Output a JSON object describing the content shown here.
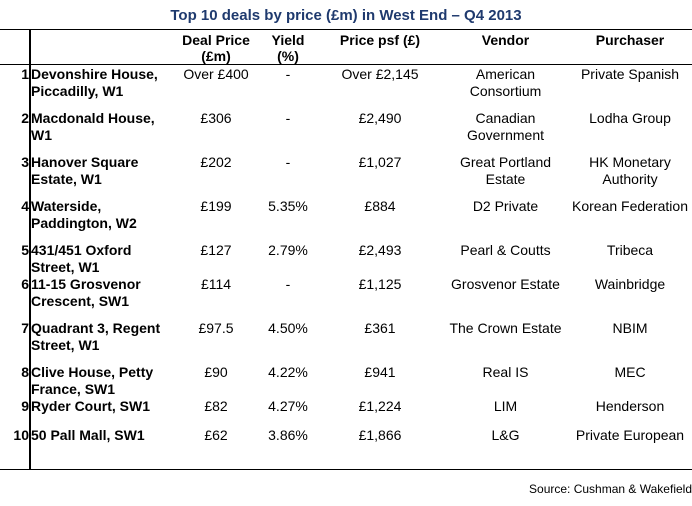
{
  "title": "Top 10 deals by price (£m) in West End – Q4 2013",
  "headers": {
    "deal_price": "Deal Price (£m)",
    "yield": "Yield (%)",
    "price_psf": "Price psf (£)",
    "vendor": "Vendor",
    "purchaser": "Purchaser"
  },
  "rows": [
    {
      "num": "1",
      "property": "Devonshire House, Piccadilly, W1",
      "price": "Over £400",
      "yield": "-",
      "psf": "Over £2,145",
      "vendor": "American Consortium",
      "purchaser": "Private Spanish"
    },
    {
      "num": "2",
      "property": "Macdonald House, W1",
      "price": "£306",
      "yield": "-",
      "psf": "£2,490",
      "vendor": "Canadian Government",
      "purchaser": "Lodha Group"
    },
    {
      "num": "3",
      "property": "Hanover Square Estate, W1",
      "price": "£202",
      "yield": "-",
      "psf": "£1,027",
      "vendor": "Great Portland Estate",
      "purchaser": "HK Monetary Authority"
    },
    {
      "num": "4",
      "property": "Waterside, Paddington, W2",
      "price": "£199",
      "yield": "5.35%",
      "psf": "£884",
      "vendor": "D2 Private",
      "purchaser": "Korean Federation"
    },
    {
      "num": "5",
      "property": "431/451 Oxford Street, W1",
      "price": "£127",
      "yield": "2.79%",
      "psf": "£2,493",
      "vendor": "Pearl & Coutts",
      "purchaser": "Tribeca"
    },
    {
      "num": "6",
      "property": "11-15 Grosvenor Crescent, SW1",
      "price": "£114",
      "yield": "-",
      "psf": "£1,125",
      "vendor": "Grosvenor Estate",
      "purchaser": "Wainbridge"
    },
    {
      "num": "7",
      "property": "Quadrant 3, Regent Street, W1",
      "price": "£97.5",
      "yield": "4.50%",
      "psf": "£361",
      "vendor": "The Crown Estate",
      "purchaser": "NBIM"
    },
    {
      "num": "8",
      "property": "Clive House, Petty France, SW1",
      "price": "£90",
      "yield": "4.22%",
      "psf": "£941",
      "vendor": "Real IS",
      "purchaser": "MEC"
    },
    {
      "num": "9",
      "property": "Ryder Court, SW1",
      "price": "£82",
      "yield": "4.27%",
      "psf": "£1,224",
      "vendor": "LIM",
      "purchaser": "Henderson"
    },
    {
      "num": "10",
      "property": "50 Pall Mall, SW1",
      "price": "£62",
      "yield": "3.86%",
      "psf": "£1,866",
      "vendor": "L&G",
      "purchaser": "Private European"
    }
  ],
  "source": "Source: Cushman & Wakefield"
}
